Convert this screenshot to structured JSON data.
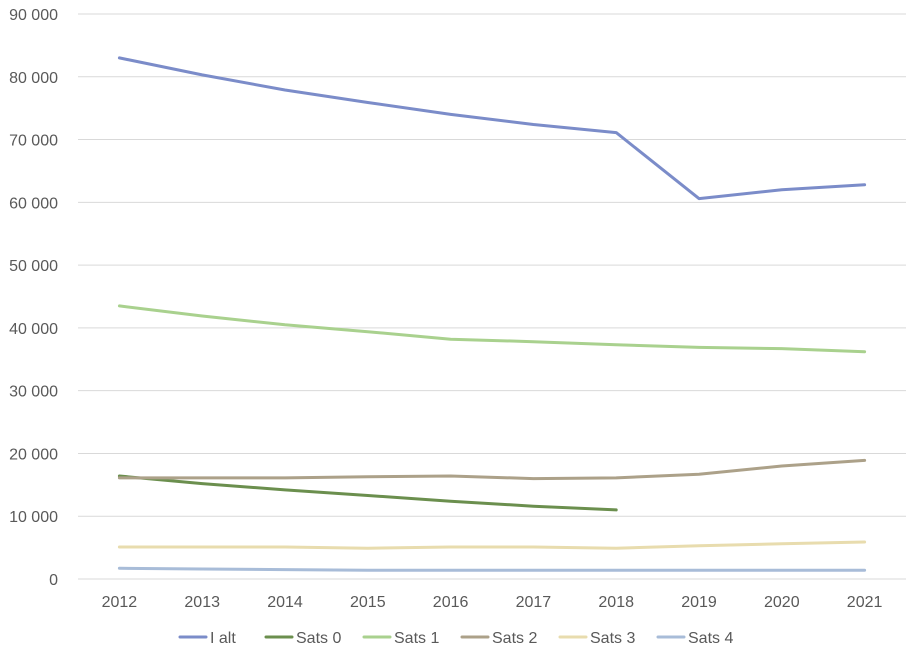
{
  "chart_data": {
    "type": "line",
    "title": "",
    "xlabel": "",
    "ylabel": "",
    "categories": [
      "2012",
      "2013",
      "2014",
      "2015",
      "2016",
      "2017",
      "2018",
      "2019",
      "2020",
      "2021"
    ],
    "ylim": [
      0,
      90000
    ],
    "yticks": [
      0,
      10000,
      20000,
      30000,
      40000,
      50000,
      60000,
      70000,
      80000,
      90000
    ],
    "ytick_labels": [
      "0",
      "10 000",
      "20 000",
      "30 000",
      "40 000",
      "50 000",
      "60 000",
      "70 000",
      "80 000",
      "90 000"
    ],
    "grid": true,
    "legend_position": "bottom",
    "series": [
      {
        "name": "I alt",
        "color": "#7b8cc9",
        "values": [
          83000,
          80300,
          77900,
          75900,
          74000,
          72400,
          71100,
          60600,
          62000,
          62800
        ]
      },
      {
        "name": "Sats 0",
        "color": "#6b8f4e",
        "values": [
          16400,
          15200,
          14200,
          13300,
          12400,
          11600,
          11000,
          null,
          null,
          null
        ]
      },
      {
        "name": "Sats 1",
        "color": "#a9d18e",
        "values": [
          43500,
          41900,
          40500,
          39400,
          38200,
          37800,
          37300,
          36900,
          36700,
          36200
        ]
      },
      {
        "name": "Sats 2",
        "color": "#aca189",
        "values": [
          16100,
          16100,
          16100,
          16300,
          16400,
          16000,
          16100,
          16700,
          18000,
          18900
        ]
      },
      {
        "name": "Sats 3",
        "color": "#e8dcae",
        "values": [
          5100,
          5100,
          5100,
          4900,
          5100,
          5100,
          4900,
          5300,
          5600,
          5900
        ]
      },
      {
        "name": "Sats 4",
        "color": "#a8bcd8",
        "values": [
          1700,
          1600,
          1500,
          1400,
          1400,
          1400,
          1400,
          1400,
          1400,
          1400
        ]
      }
    ]
  }
}
